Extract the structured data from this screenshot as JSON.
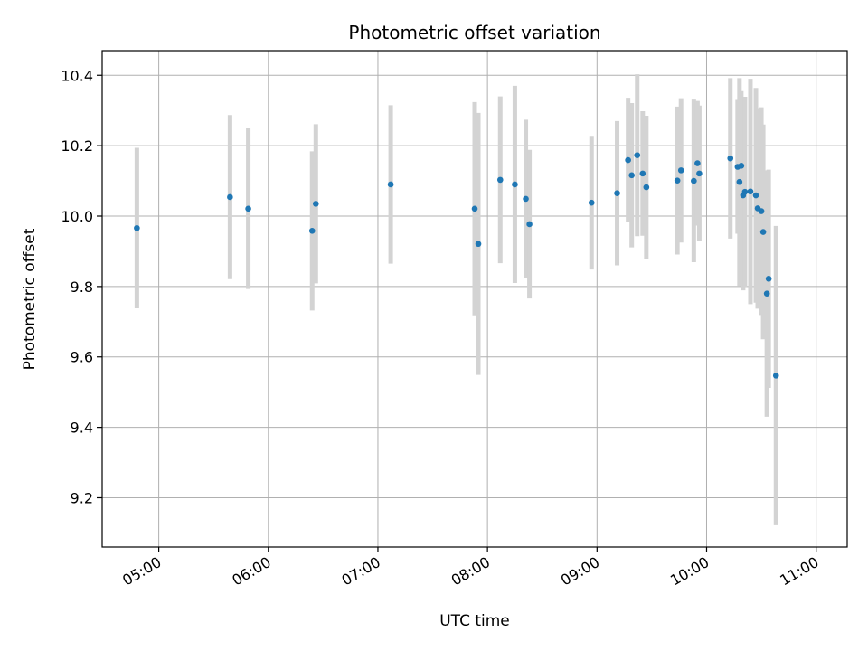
{
  "chart_data": {
    "type": "scatter",
    "title": "Photometric offset variation",
    "xlabel": "UTC time",
    "ylabel": "Photometric offset",
    "grid": true,
    "xlim": [
      "04:29",
      "11:17"
    ],
    "ylim": [
      9.06,
      10.47
    ],
    "x_ticks": [
      "05:00",
      "06:00",
      "07:00",
      "08:00",
      "09:00",
      "10:00",
      "11:00"
    ],
    "y_ticks": [
      9.2,
      9.4,
      9.6,
      9.8,
      10.0,
      10.2,
      10.4
    ],
    "y_tick_labels": [
      "9.2",
      "9.4",
      "9.6",
      "9.8",
      "10.0",
      "10.2",
      "10.4"
    ],
    "colors": {
      "point": "#1f77b4",
      "errorbar": "#d3d3d3",
      "grid": "#b0b0b0"
    },
    "series": [
      {
        "points": [
          {
            "x": "04:48",
            "y": 9.966,
            "yerr": 0.228
          },
          {
            "x": "05:39",
            "y": 10.054,
            "yerr": 0.233
          },
          {
            "x": "05:49",
            "y": 10.021,
            "yerr": 0.228
          },
          {
            "x": "06:24",
            "y": 9.958,
            "yerr": 0.226
          },
          {
            "x": "06:26",
            "y": 10.035,
            "yerr": 0.226
          },
          {
            "x": "07:07",
            "y": 10.09,
            "yerr": 0.225
          },
          {
            "x": "07:53",
            "y": 10.021,
            "yerr": 0.303
          },
          {
            "x": "07:55",
            "y": 9.921,
            "yerr": 0.372
          },
          {
            "x": "08:07",
            "y": 10.103,
            "yerr": 0.237
          },
          {
            "x": "08:15",
            "y": 10.09,
            "yerr": 0.28
          },
          {
            "x": "08:21",
            "y": 10.049,
            "yerr": 0.225
          },
          {
            "x": "08:23",
            "y": 9.977,
            "yerr": 0.211
          },
          {
            "x": "08:57",
            "y": 10.038,
            "yerr": 0.19
          },
          {
            "x": "09:11",
            "y": 10.065,
            "yerr": 0.205
          },
          {
            "x": "09:17",
            "y": 10.159,
            "yerr": 0.177
          },
          {
            "x": "09:19",
            "y": 10.116,
            "yerr": 0.205
          },
          {
            "x": "09:22",
            "y": 10.173,
            "yerr": 0.23
          },
          {
            "x": "09:25",
            "y": 10.121,
            "yerr": 0.177
          },
          {
            "x": "09:27",
            "y": 10.082,
            "yerr": 0.203
          },
          {
            "x": "09:44",
            "y": 10.101,
            "yerr": 0.21
          },
          {
            "x": "09:46",
            "y": 10.13,
            "yerr": 0.205
          },
          {
            "x": "09:53",
            "y": 10.1,
            "yerr": 0.231
          },
          {
            "x": "09:55",
            "y": 10.15,
            "yerr": 0.177
          },
          {
            "x": "09:56",
            "y": 10.121,
            "yerr": 0.193
          },
          {
            "x": "10:13",
            "y": 10.164,
            "yerr": 0.228
          },
          {
            "x": "10:17",
            "y": 10.14,
            "yerr": 0.19
          },
          {
            "x": "10:18",
            "y": 10.097,
            "yerr": 0.295
          },
          {
            "x": "10:19",
            "y": 10.143,
            "yerr": 0.212
          },
          {
            "x": "10:20",
            "y": 10.059,
            "yerr": 0.27
          },
          {
            "x": "10:21",
            "y": 10.069,
            "yerr": 0.27
          },
          {
            "x": "10:24",
            "y": 10.07,
            "yerr": 0.32
          },
          {
            "x": "10:27",
            "y": 10.059,
            "yerr": 0.305
          },
          {
            "x": "10:28",
            "y": 10.022,
            "yerr": 0.285
          },
          {
            "x": "10:30",
            "y": 10.014,
            "yerr": 0.295
          },
          {
            "x": "10:31",
            "y": 9.955,
            "yerr": 0.305
          },
          {
            "x": "10:33",
            "y": 9.78,
            "yerr": 0.35
          },
          {
            "x": "10:34",
            "y": 9.822,
            "yerr": 0.31
          },
          {
            "x": "10:38",
            "y": 9.547,
            "yerr": 0.425
          }
        ]
      }
    ]
  }
}
